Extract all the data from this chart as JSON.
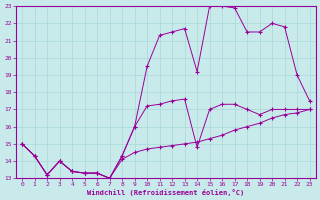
{
  "xlabel": "Windchill (Refroidissement éolien,°C)",
  "bg_color": "#c8eaea",
  "grid_color": "#a8d8d8",
  "line_color": "#990099",
  "xlim": [
    -0.5,
    23.5
  ],
  "ylim": [
    13,
    23
  ],
  "xticks": [
    0,
    1,
    2,
    3,
    4,
    5,
    6,
    7,
    8,
    9,
    10,
    11,
    12,
    13,
    14,
    15,
    16,
    17,
    18,
    19,
    20,
    21,
    22,
    23
  ],
  "yticks": [
    13,
    14,
    15,
    16,
    17,
    18,
    19,
    20,
    21,
    22,
    23
  ],
  "line1_x": [
    0,
    1,
    2,
    3,
    4,
    5,
    6,
    7,
    8,
    9,
    10,
    11,
    12,
    13,
    14,
    15,
    16,
    17,
    18,
    19,
    20,
    21,
    22,
    23
  ],
  "line1_y": [
    15.0,
    14.3,
    13.2,
    14.0,
    13.4,
    13.3,
    13.3,
    13.0,
    14.1,
    14.5,
    14.7,
    14.8,
    14.9,
    15.0,
    15.1,
    15.3,
    15.5,
    15.8,
    16.0,
    16.2,
    16.5,
    16.7,
    16.8,
    17.0
  ],
  "line2_x": [
    0,
    1,
    2,
    3,
    4,
    5,
    6,
    7,
    8,
    9,
    10,
    11,
    12,
    13,
    14,
    15,
    16,
    17,
    18,
    19,
    20,
    21,
    22,
    23
  ],
  "line2_y": [
    15.0,
    14.3,
    13.2,
    14.0,
    13.4,
    13.3,
    13.3,
    13.0,
    14.3,
    16.0,
    17.2,
    17.3,
    17.5,
    17.6,
    14.8,
    17.0,
    17.3,
    17.3,
    17.0,
    16.7,
    17.0,
    17.0,
    17.0,
    17.0
  ],
  "line3_x": [
    0,
    1,
    2,
    3,
    4,
    5,
    6,
    7,
    8,
    9,
    10,
    11,
    12,
    13,
    14,
    15,
    16,
    17,
    18,
    19,
    20,
    21,
    22,
    23
  ],
  "line3_y": [
    15.0,
    14.3,
    13.2,
    14.0,
    13.4,
    13.3,
    13.3,
    13.0,
    14.3,
    16.0,
    19.5,
    21.3,
    21.5,
    21.7,
    19.2,
    23.0,
    23.0,
    22.9,
    21.5,
    21.5,
    22.0,
    21.8,
    19.0,
    17.5
  ]
}
